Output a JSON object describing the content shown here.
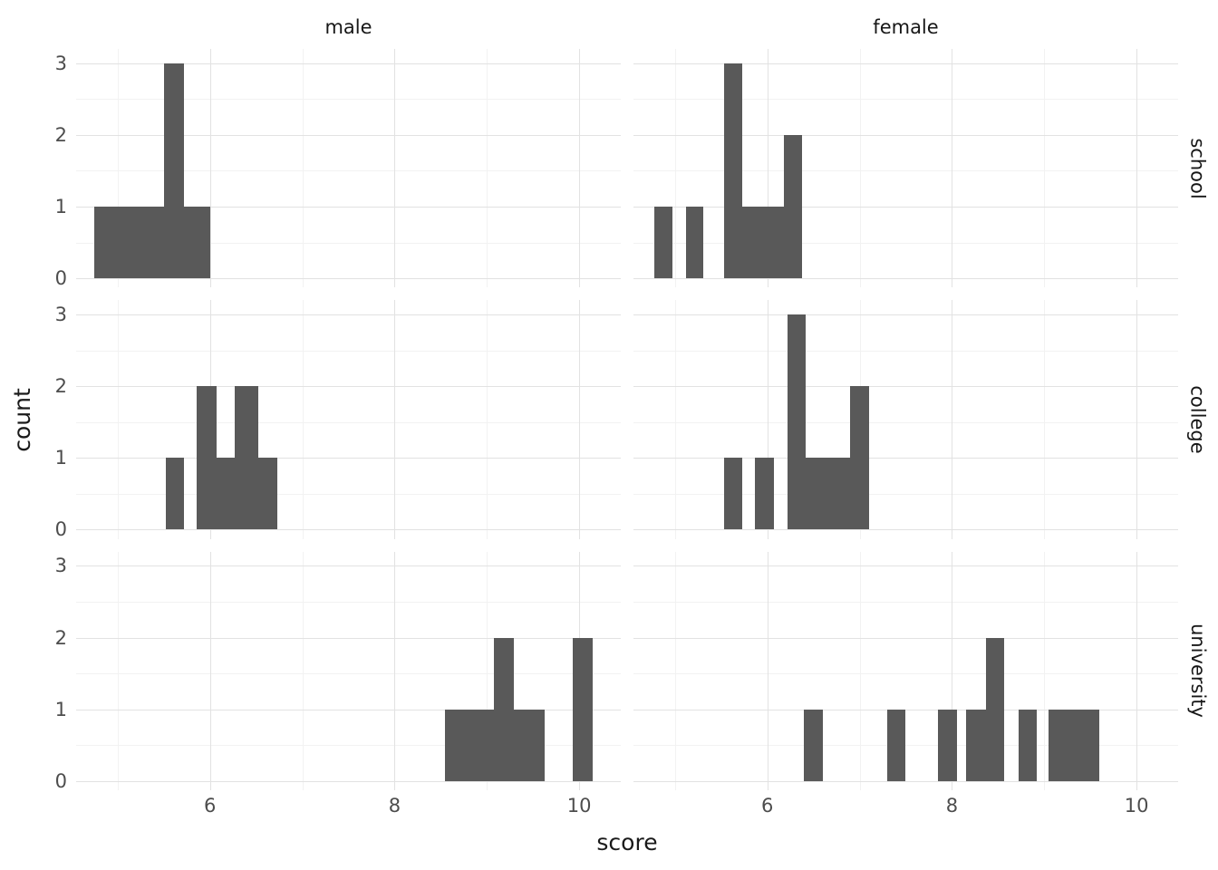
{
  "chart_data": {
    "type": "bar",
    "subtype": "faceted-histogram",
    "title": "",
    "xlabel": "score",
    "ylabel": "count",
    "x_ticks": [
      6,
      8,
      10
    ],
    "y_ticks": [
      0,
      1,
      2,
      3
    ],
    "x_minor": [
      5,
      7,
      9
    ],
    "y_minor": [
      0.5,
      1.5,
      2.5
    ],
    "xlim": [
      4.55,
      10.45
    ],
    "ylim": [
      0,
      3
    ],
    "grid": "on",
    "legend": "none",
    "bar_color": "#595959",
    "grid_major_color": "#e2e2e2",
    "grid_minor_color": "#f2f2f2",
    "facet_columns": [
      "male",
      "female"
    ],
    "facet_rows": [
      "school",
      "college",
      "university"
    ],
    "panels": [
      {
        "row": "school",
        "col": "male",
        "bars": [
          {
            "x0": 4.75,
            "x1": 5.0,
            "count": 1
          },
          {
            "x0": 5.0,
            "x1": 5.25,
            "count": 1
          },
          {
            "x0": 5.25,
            "x1": 5.5,
            "count": 1
          },
          {
            "x0": 5.5,
            "x1": 5.72,
            "count": 3
          },
          {
            "x0": 5.72,
            "x1": 6.0,
            "count": 1
          }
        ]
      },
      {
        "row": "school",
        "col": "female",
        "bars": [
          {
            "x0": 4.78,
            "x1": 4.97,
            "count": 1
          },
          {
            "x0": 5.12,
            "x1": 5.31,
            "count": 1
          },
          {
            "x0": 5.53,
            "x1": 5.73,
            "count": 3
          },
          {
            "x0": 5.73,
            "x1": 6.18,
            "count": 1
          },
          {
            "x0": 6.18,
            "x1": 6.38,
            "count": 2
          }
        ]
      },
      {
        "row": "college",
        "col": "male",
        "bars": [
          {
            "x0": 5.52,
            "x1": 5.72,
            "count": 1
          },
          {
            "x0": 5.86,
            "x1": 6.07,
            "count": 2
          },
          {
            "x0": 6.07,
            "x1": 6.27,
            "count": 1
          },
          {
            "x0": 6.27,
            "x1": 6.52,
            "count": 2
          },
          {
            "x0": 6.52,
            "x1": 6.73,
            "count": 1
          }
        ]
      },
      {
        "row": "college",
        "col": "female",
        "bars": [
          {
            "x0": 5.53,
            "x1": 5.73,
            "count": 1
          },
          {
            "x0": 5.87,
            "x1": 6.07,
            "count": 1
          },
          {
            "x0": 6.22,
            "x1": 6.42,
            "count": 3
          },
          {
            "x0": 6.42,
            "x1": 6.9,
            "count": 1
          },
          {
            "x0": 6.9,
            "x1": 7.1,
            "count": 2
          }
        ]
      },
      {
        "row": "university",
        "col": "male",
        "bars": [
          {
            "x0": 8.55,
            "x1": 9.08,
            "count": 1
          },
          {
            "x0": 9.08,
            "x1": 9.29,
            "count": 2
          },
          {
            "x0": 9.29,
            "x1": 9.63,
            "count": 1
          },
          {
            "x0": 9.93,
            "x1": 10.15,
            "count": 2
          }
        ]
      },
      {
        "row": "university",
        "col": "female",
        "bars": [
          {
            "x0": 6.4,
            "x1": 6.6,
            "count": 1
          },
          {
            "x0": 7.3,
            "x1": 7.5,
            "count": 1
          },
          {
            "x0": 7.85,
            "x1": 8.05,
            "count": 1
          },
          {
            "x0": 8.15,
            "x1": 8.37,
            "count": 1
          },
          {
            "x0": 8.37,
            "x1": 8.57,
            "count": 2
          },
          {
            "x0": 8.72,
            "x1": 8.92,
            "count": 1
          },
          {
            "x0": 9.05,
            "x1": 9.6,
            "count": 1
          }
        ]
      }
    ]
  }
}
